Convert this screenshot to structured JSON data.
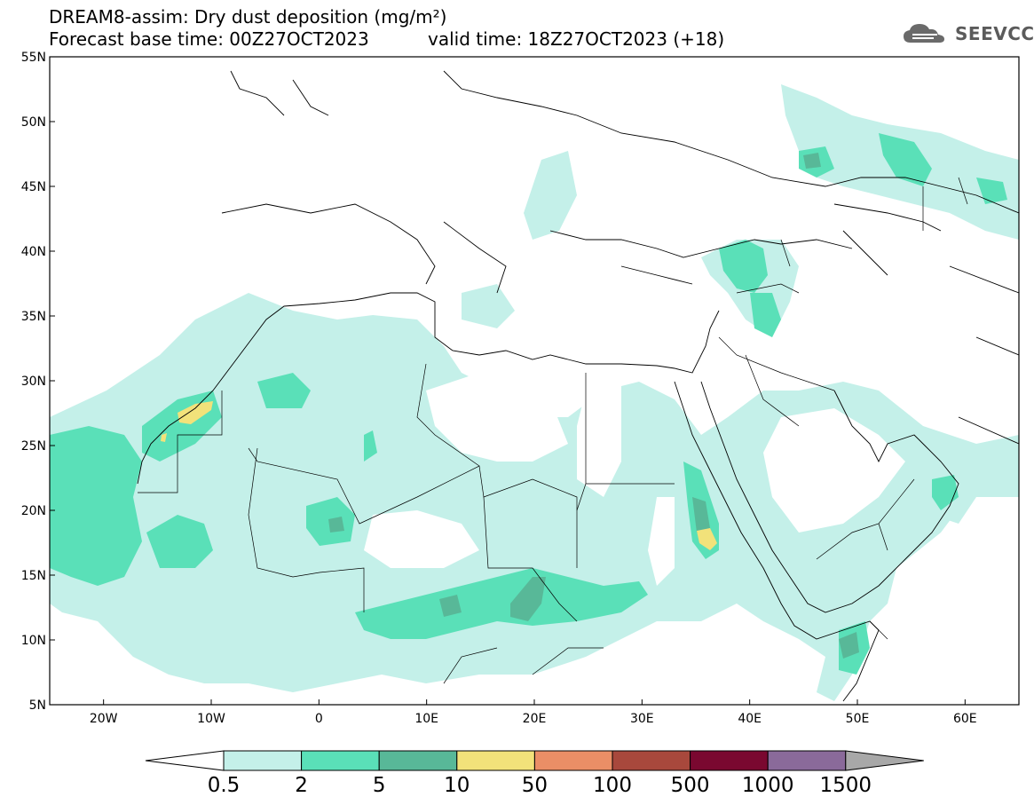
{
  "header": {
    "title_line1": "DREAM8-assim: Dry dust deposition (mg/m²)",
    "title_line2": "Forecast base time: 00Z27OCT2023",
    "valid_time": "valid time: 18Z27OCT2023 (+18)",
    "logo": "SEEVCCC",
    "logo_icon": "cloud-icon"
  },
  "map": {
    "lon_range": [
      -25,
      65
    ],
    "lat_range": [
      5,
      55
    ],
    "lat_ticks": [
      "5N",
      "10N",
      "15N",
      "20N",
      "25N",
      "30N",
      "35N",
      "40N",
      "45N",
      "50N",
      "55N"
    ],
    "lon_ticks": [
      "20W",
      "10W",
      "0",
      "10E",
      "20E",
      "30E",
      "40E",
      "50E",
      "60E"
    ],
    "colors": {
      "land_line": "#000000",
      "frame": "#000000"
    }
  },
  "colorbar": {
    "labels": [
      "0.5",
      "2",
      "5",
      "10",
      "50",
      "100",
      "500",
      "1000",
      "1500"
    ],
    "colors": [
      "#c4f0e9",
      "#5ae0b8",
      "#58b898",
      "#f2e27a",
      "#ea8e66",
      "#a8483c",
      "#7a0830",
      "#8a6a9a"
    ],
    "end_colors": {
      "low": "#ffffff",
      "high": "#a8a8a8"
    }
  }
}
